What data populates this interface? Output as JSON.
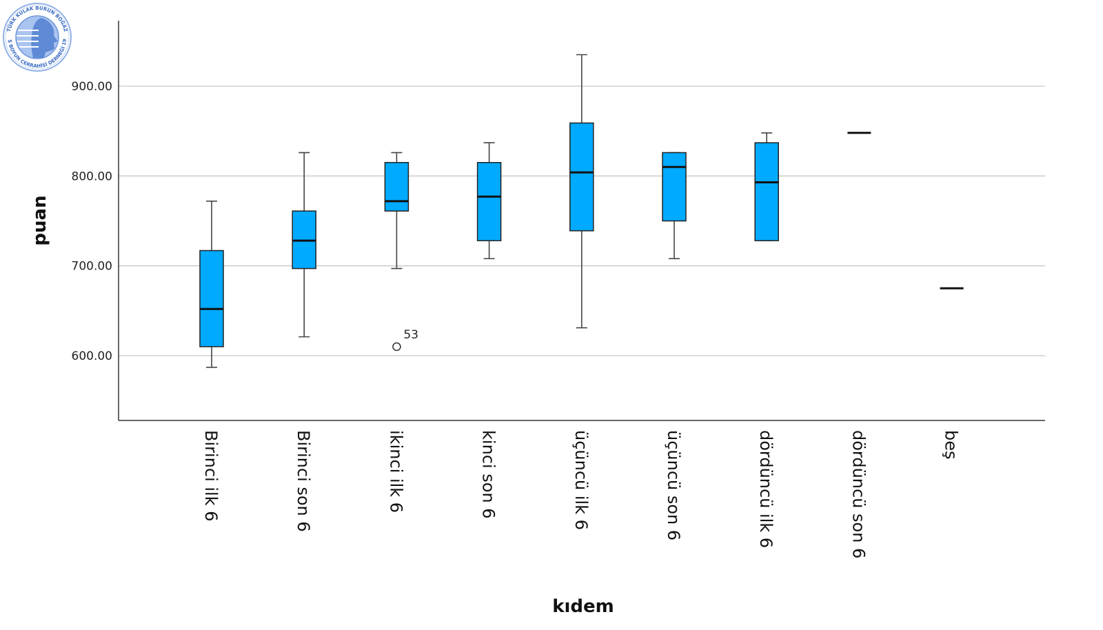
{
  "logo": {
    "top_text": "TÜRK KULAK BURUN BOĞAZ",
    "bottom_text": "BAŞ BOYUN CERRAHİSİ DERNEĞİ 1928",
    "color": "#3b6cc4"
  },
  "chart_data": {
    "type": "box",
    "xlabel": "kıdem",
    "ylabel": "puan",
    "ylim": [
      530,
      960
    ],
    "yticks": [
      600,
      700,
      800,
      900
    ],
    "ytick_labels": [
      "600.00",
      "700.00",
      "800.00",
      "900.00"
    ],
    "grid": true,
    "box_color": "#00aaff",
    "categories": [
      "Birinci ilk 6",
      "Birinci son 6",
      "ikinci ilk 6",
      "kinci son 6",
      "üçüncü ilk 6",
      "üçüncü son 6",
      "dördüncü ilk 6",
      "dördüncü son 6",
      "beş"
    ],
    "boxes": [
      {
        "whisker_low": 587,
        "q1": 610,
        "median": 652,
        "q3": 717,
        "whisker_high": 772,
        "outliers": []
      },
      {
        "whisker_low": 621,
        "q1": 697,
        "median": 728,
        "q3": 761,
        "whisker_high": 826,
        "outliers": []
      },
      {
        "whisker_low": 697,
        "q1": 761,
        "median": 772,
        "q3": 815,
        "whisker_high": 826,
        "outliers": [
          {
            "value": 610,
            "label": "53"
          }
        ]
      },
      {
        "whisker_low": 708,
        "q1": 728,
        "median": 777,
        "q3": 815,
        "whisker_high": 837,
        "outliers": []
      },
      {
        "whisker_low": 631,
        "q1": 739,
        "median": 804,
        "q3": 859,
        "whisker_high": 935,
        "outliers": []
      },
      {
        "whisker_low": 708,
        "q1": 750,
        "median": 810,
        "q3": 826,
        "whisker_high": 826,
        "outliers": []
      },
      {
        "whisker_low": 728,
        "q1": 728,
        "median": 793,
        "q3": 837,
        "whisker_high": 848,
        "outliers": []
      },
      {
        "whisker_low": 848,
        "q1": 848,
        "median": 848,
        "q3": 848,
        "whisker_high": 848,
        "outliers": []
      },
      {
        "whisker_low": 675,
        "q1": 675,
        "median": 675,
        "q3": 675,
        "whisker_high": 675,
        "outliers": []
      }
    ]
  }
}
